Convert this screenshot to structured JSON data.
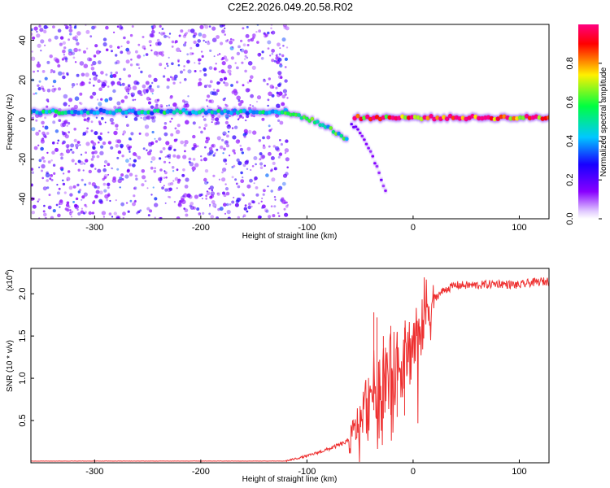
{
  "figure_title": "C2E2.2026.049.20.58.R02",
  "chart_data": [
    {
      "type": "heatmap",
      "panel": "spectrogram",
      "title": "C2E2.2026.049.20.58.R02",
      "xlabel": "Height of straight line (km)",
      "ylabel": "Frequency (Hz)",
      "xlim": [
        -360,
        128
      ],
      "ylim": [
        -50,
        48
      ],
      "xticks": [
        -300,
        -200,
        -100,
        0,
        100
      ],
      "yticks": [
        -40,
        -20,
        0,
        20,
        40
      ],
      "colorbar": {
        "label": "Normalized spectral amplitude",
        "range": [
          0,
          1
        ],
        "ticks": [
          0.0,
          0.2,
          0.4,
          0.6,
          0.8
        ],
        "colormap": [
          "#e8d8ff",
          "#8800ff",
          "#1400ff",
          "#00c8ff",
          "#00ff40",
          "#fff000",
          "#ff0000",
          "#ff0080"
        ]
      },
      "features": [
        {
          "name": "main carrier",
          "x": [
            -360,
            -120
          ],
          "freq": 4,
          "amplitude": 0.45
        },
        {
          "name": "bending carrier",
          "x": [
            -120,
            -62
          ],
          "freq_start": 3,
          "freq_end": -10,
          "amplitude": 0.5
        },
        {
          "name": "secondary branch",
          "x": [
            -58,
            -25
          ],
          "freq_start": -3,
          "freq_end": -38,
          "amplitude": 0.15
        },
        {
          "name": "recovered carrier",
          "x": [
            -55,
            128
          ],
          "freq": 1,
          "amplitude": 0.85
        },
        {
          "name": "scattered noise",
          "x": [
            -360,
            -118
          ],
          "freq_range": [
            -50,
            48
          ],
          "amplitude": 0.1
        }
      ]
    },
    {
      "type": "line",
      "panel": "snr",
      "xlabel": "Height of straight line (km)",
      "ylabel": "SNR (10 * v/v)",
      "y_multiplier": "(x10",
      "y_multiplier_exp": "4",
      "y_multiplier_close": ")",
      "xlim": [
        -360,
        128
      ],
      "ylim": [
        0,
        2.3
      ],
      "xticks": [
        -300,
        -200,
        -100,
        0,
        100
      ],
      "yticks": [
        0.5,
        1.0,
        1.5,
        2.0
      ],
      "ytick_labels": [
        "0.5",
        "1.0",
        "1.5",
        "2.0"
      ],
      "line_color": "#ee3030",
      "series": [
        {
          "name": "SNR",
          "x": [
            -360,
            -120,
            -100,
            -80,
            -60,
            -50,
            -40,
            -30,
            -20,
            -10,
            0,
            10,
            20,
            30,
            40,
            60,
            80,
            100,
            110,
            128
          ],
          "y": [
            0.02,
            0.02,
            0.08,
            0.16,
            0.26,
            0.5,
            0.85,
            1.0,
            1.1,
            1.2,
            1.4,
            1.75,
            1.95,
            2.05,
            2.1,
            2.1,
            2.12,
            2.1,
            2.13,
            2.15
          ]
        }
      ],
      "annotated_peaks": [
        {
          "x": -37,
          "y": 1.78
        },
        {
          "x": -34,
          "y": 1.72
        },
        {
          "x": -28,
          "y": 1.5
        },
        {
          "x": -21,
          "y": 1.62
        },
        {
          "x": -15,
          "y": 1.55
        },
        {
          "x": -8,
          "y": 1.6
        }
      ]
    }
  ]
}
